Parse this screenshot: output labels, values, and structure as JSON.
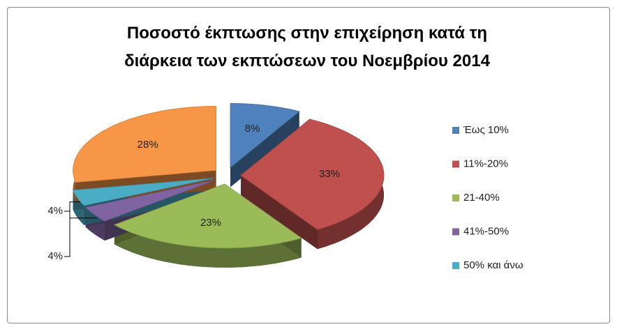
{
  "chart_data": {
    "type": "pie3d",
    "title": "Ποσοστό έκπτωσης στην επιχείρηση κατά τη διάρκεια των εκπτώσεων του Νοεμβρίου 2014",
    "categories": [
      "Έως 10%",
      "11%-20%",
      "21-40%",
      "41%-50%",
      "50% και άνω",
      null
    ],
    "values": [
      8,
      33,
      23,
      4,
      4,
      28
    ],
    "value_labels": [
      "8%",
      "33%",
      "23%",
      "4%",
      "4%",
      "28%"
    ],
    "colors": [
      "#4f81bd",
      "#c0504d",
      "#9bbb59",
      "#8064a2",
      "#4bacc6",
      "#f79646"
    ],
    "legend": "right"
  }
}
